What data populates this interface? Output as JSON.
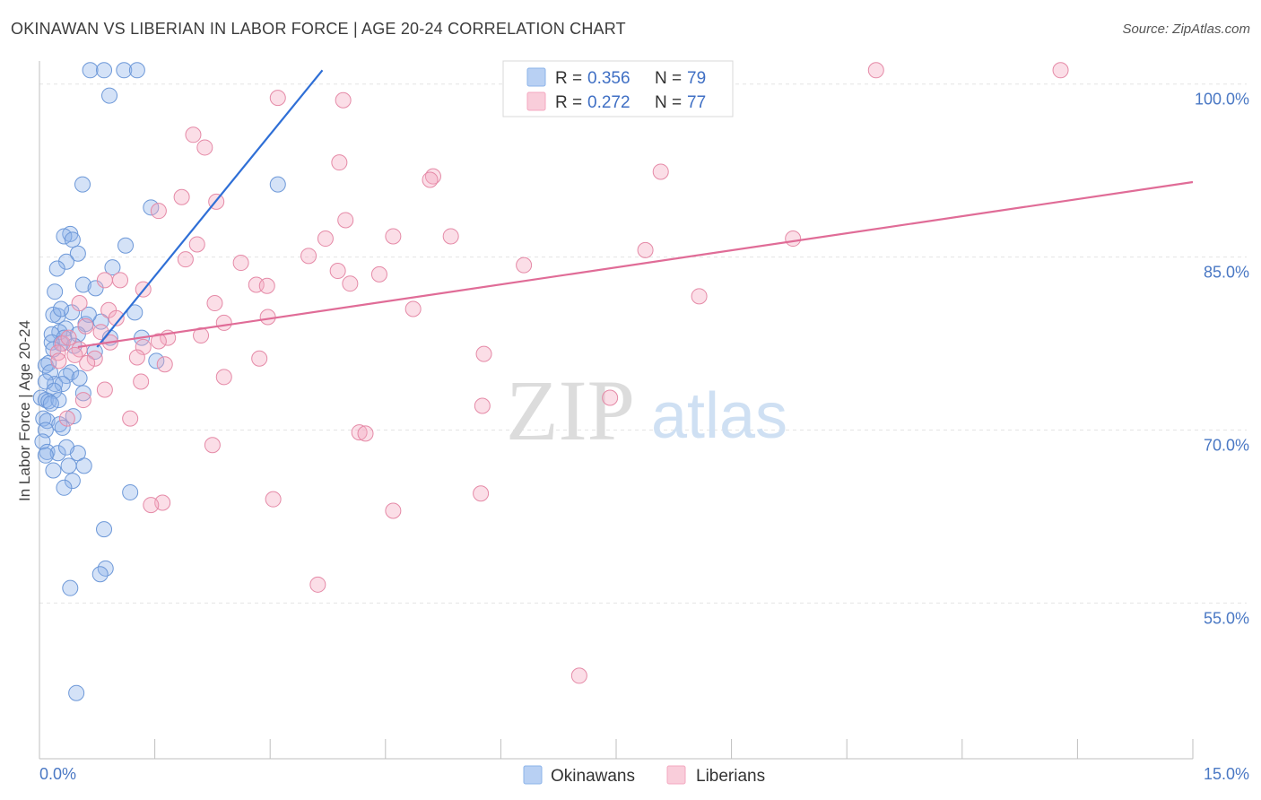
{
  "title": "OKINAWAN VS LIBERIAN IN LABOR FORCE | AGE 20-24 CORRELATION CHART",
  "source": "Source: ZipAtlas.com",
  "watermark": {
    "zip": "ZIP",
    "atlas": "atlas"
  },
  "chart_data": {
    "type": "scatter",
    "ylabel": "In Labor Force | Age 20-24",
    "xlim": [
      0,
      15
    ],
    "ylim": [
      41.5,
      102
    ],
    "x_tick_labels": [
      {
        "value": 0,
        "label": "0.0%"
      },
      {
        "value": 15,
        "label": "15.0%"
      }
    ],
    "y_tick_labels": [
      {
        "value": 100,
        "label": "100.0%"
      },
      {
        "value": 85,
        "label": "85.0%"
      },
      {
        "value": 70,
        "label": "70.0%"
      },
      {
        "value": 55,
        "label": "55.0%"
      }
    ],
    "gridlines_y": [
      100,
      85,
      70,
      55
    ],
    "legend": {
      "entries": [
        {
          "r_label": "R =",
          "r_value": "0.356",
          "n_label": "N =",
          "n_value": "79",
          "color": "#8db4ea"
        },
        {
          "r_label": "R =",
          "r_value": "0.272",
          "n_label": "N =",
          "n_value": "77",
          "color": "#f4a8c0"
        }
      ]
    },
    "bottom_legend": [
      {
        "label": "Okinawans",
        "color": "#8db4ea"
      },
      {
        "label": "Liberians",
        "color": "#f4a8c0"
      }
    ],
    "series": [
      {
        "name": "Okinawans",
        "color": "#8db4ea",
        "stroke": "#6d98d8",
        "line_color": "#2f6fd6",
        "trend": {
          "x": [
            0.75,
            3.68
          ],
          "y": [
            77.2,
            101.2
          ]
        },
        "points": [
          [
            0.66,
            101.2
          ],
          [
            0.84,
            101.2
          ],
          [
            1.1,
            101.2
          ],
          [
            1.27,
            101.2
          ],
          [
            0.91,
            99.0
          ],
          [
            0.56,
            91.3
          ],
          [
            3.1,
            91.3
          ],
          [
            1.45,
            89.3
          ],
          [
            0.4,
            87.0
          ],
          [
            0.32,
            86.8
          ],
          [
            0.43,
            86.5
          ],
          [
            0.5,
            85.3
          ],
          [
            1.12,
            86.0
          ],
          [
            0.35,
            84.6
          ],
          [
            0.95,
            84.1
          ],
          [
            0.57,
            82.6
          ],
          [
            0.73,
            82.3
          ],
          [
            0.2,
            82.0
          ],
          [
            0.8,
            79.4
          ],
          [
            1.24,
            80.2
          ],
          [
            0.24,
            79.9
          ],
          [
            0.42,
            80.2
          ],
          [
            0.18,
            80.0
          ],
          [
            0.6,
            79.2
          ],
          [
            0.34,
            78.8
          ],
          [
            0.26,
            78.5
          ],
          [
            0.5,
            78.3
          ],
          [
            0.92,
            78.0
          ],
          [
            0.16,
            78.3
          ],
          [
            0.32,
            78.0
          ],
          [
            0.28,
            77.5
          ],
          [
            0.45,
            77.3
          ],
          [
            0.16,
            77.6
          ],
          [
            1.33,
            78.0
          ],
          [
            1.52,
            76.0
          ],
          [
            0.12,
            75.8
          ],
          [
            0.08,
            75.6
          ],
          [
            0.14,
            75.0
          ],
          [
            0.41,
            75.0
          ],
          [
            0.35,
            74.7
          ],
          [
            0.2,
            74.0
          ],
          [
            0.08,
            74.2
          ],
          [
            0.3,
            74.0
          ],
          [
            0.19,
            73.4
          ],
          [
            0.57,
            73.2
          ],
          [
            0.02,
            72.8
          ],
          [
            0.08,
            72.6
          ],
          [
            0.12,
            72.5
          ],
          [
            0.25,
            72.6
          ],
          [
            0.15,
            72.3
          ],
          [
            0.05,
            71.0
          ],
          [
            0.1,
            70.8
          ],
          [
            0.26,
            70.5
          ],
          [
            0.3,
            70.2
          ],
          [
            0.08,
            70.0
          ],
          [
            0.04,
            69.0
          ],
          [
            0.1,
            68.1
          ],
          [
            0.24,
            68.0
          ],
          [
            0.08,
            67.8
          ],
          [
            0.5,
            68.0
          ],
          [
            0.38,
            66.9
          ],
          [
            0.58,
            66.9
          ],
          [
            0.18,
            66.5
          ],
          [
            0.43,
            65.6
          ],
          [
            0.32,
            65.0
          ],
          [
            1.18,
            64.6
          ],
          [
            0.84,
            61.4
          ],
          [
            0.86,
            58.0
          ],
          [
            0.79,
            57.5
          ],
          [
            0.4,
            56.3
          ],
          [
            0.48,
            47.2
          ],
          [
            0.28,
            80.5
          ],
          [
            0.18,
            77.0
          ],
          [
            0.52,
            74.5
          ],
          [
            0.44,
            71.2
          ],
          [
            0.64,
            80.0
          ],
          [
            0.35,
            68.5
          ],
          [
            0.23,
            84.0
          ],
          [
            0.72,
            76.8
          ]
        ]
      },
      {
        "name": "Liberians",
        "color": "#f4a8c0",
        "stroke": "#e58aa7",
        "line_color": "#e06c97",
        "trend": {
          "x": [
            0.5,
            15.0
          ],
          "y": [
            77.2,
            91.5
          ]
        },
        "points": [
          [
            10.88,
            101.2
          ],
          [
            13.28,
            101.2
          ],
          [
            3.1,
            98.8
          ],
          [
            3.95,
            98.6
          ],
          [
            2.0,
            95.6
          ],
          [
            2.15,
            94.5
          ],
          [
            3.9,
            93.2
          ],
          [
            8.08,
            92.4
          ],
          [
            5.12,
            92.0
          ],
          [
            5.08,
            91.7
          ],
          [
            1.85,
            90.2
          ],
          [
            2.3,
            89.8
          ],
          [
            1.55,
            89.0
          ],
          [
            3.98,
            88.2
          ],
          [
            4.6,
            86.8
          ],
          [
            5.35,
            86.8
          ],
          [
            9.8,
            86.6
          ],
          [
            3.72,
            86.6
          ],
          [
            2.05,
            86.1
          ],
          [
            7.88,
            85.6
          ],
          [
            3.5,
            85.1
          ],
          [
            1.9,
            84.8
          ],
          [
            2.62,
            84.5
          ],
          [
            6.3,
            84.3
          ],
          [
            3.88,
            83.8
          ],
          [
            4.42,
            83.5
          ],
          [
            0.85,
            83.0
          ],
          [
            1.05,
            83.0
          ],
          [
            2.82,
            82.6
          ],
          [
            2.96,
            82.5
          ],
          [
            4.04,
            82.7
          ],
          [
            1.35,
            82.2
          ],
          [
            0.52,
            81.0
          ],
          [
            8.58,
            81.6
          ],
          [
            2.28,
            81.0
          ],
          [
            4.86,
            80.5
          ],
          [
            0.9,
            80.4
          ],
          [
            1.0,
            79.7
          ],
          [
            2.97,
            79.8
          ],
          [
            2.4,
            79.3
          ],
          [
            0.6,
            79.0
          ],
          [
            0.8,
            78.5
          ],
          [
            1.67,
            78.0
          ],
          [
            2.1,
            78.2
          ],
          [
            1.55,
            77.7
          ],
          [
            1.35,
            77.2
          ],
          [
            0.52,
            77.0
          ],
          [
            0.3,
            77.5
          ],
          [
            0.24,
            76.7
          ],
          [
            0.92,
            77.6
          ],
          [
            0.72,
            76.2
          ],
          [
            1.27,
            76.3
          ],
          [
            5.78,
            76.6
          ],
          [
            0.62,
            75.8
          ],
          [
            1.63,
            75.7
          ],
          [
            2.86,
            76.2
          ],
          [
            0.25,
            76.0
          ],
          [
            2.4,
            74.6
          ],
          [
            1.32,
            74.2
          ],
          [
            0.85,
            73.5
          ],
          [
            0.57,
            72.6
          ],
          [
            7.42,
            72.8
          ],
          [
            5.76,
            72.1
          ],
          [
            1.18,
            71.0
          ],
          [
            0.36,
            71.0
          ],
          [
            4.16,
            69.8
          ],
          [
            4.24,
            69.7
          ],
          [
            2.25,
            68.7
          ],
          [
            5.74,
            64.5
          ],
          [
            3.04,
            64.0
          ],
          [
            1.6,
            63.7
          ],
          [
            1.45,
            63.5
          ],
          [
            4.6,
            63.0
          ],
          [
            3.62,
            56.6
          ],
          [
            7.02,
            48.7
          ],
          [
            0.38,
            78.0
          ],
          [
            0.46,
            76.5
          ]
        ]
      }
    ]
  }
}
